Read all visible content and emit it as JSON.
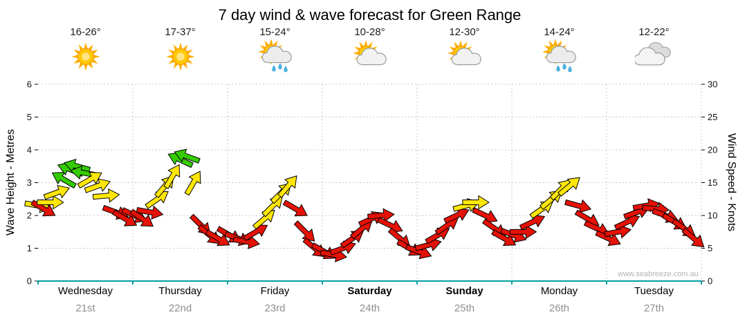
{
  "title": "7 day wind & wave forecast for Green Range",
  "watermark": "www.seabreeze.com.au",
  "colors": {
    "x_axis": "#00a0a0",
    "grid": "#c8c8c8",
    "date_text": "#8f8f8f",
    "watermark": "#b4b4b4"
  },
  "days": [
    {
      "name": "Wednesday",
      "date": "21st",
      "temp": "16-26°",
      "icon": "sunny",
      "bold": false
    },
    {
      "name": "Thursday",
      "date": "22nd",
      "temp": "17-37°",
      "icon": "sunny",
      "bold": false
    },
    {
      "name": "Friday",
      "date": "23rd",
      "temp": "15-24°",
      "icon": "sun-rain",
      "bold": false
    },
    {
      "name": "Saturday",
      "date": "24th",
      "temp": "10-28°",
      "icon": "sun-cloud",
      "bold": true
    },
    {
      "name": "Sunday",
      "date": "25th",
      "temp": "12-30°",
      "icon": "sun-cloud",
      "bold": true
    },
    {
      "name": "Monday",
      "date": "26th",
      "temp": "14-24°",
      "icon": "sun-rain",
      "bold": false
    },
    {
      "name": "Tuesday",
      "date": "27th",
      "temp": "12-22°",
      "icon": "cloudy",
      "bold": false
    }
  ],
  "chart_data": {
    "type": "scatter",
    "style": "wind-direction-arrows",
    "title": "7 day wind & wave forecast for Green Range",
    "x_categories": [
      "Wednesday 21st",
      "Thursday 22nd",
      "Friday 23rd",
      "Saturday 24th",
      "Sunday 25th",
      "Monday 26th",
      "Tuesday 27th"
    ],
    "left_axis": {
      "label": "Wave Height - Metres",
      "range": [
        0,
        6
      ],
      "ticks": [
        0,
        1,
        2,
        3,
        4,
        5,
        6
      ]
    },
    "right_axis": {
      "label": "Wind Speed - Knots",
      "range": [
        0,
        30
      ],
      "ticks": [
        0,
        5,
        10,
        15,
        20,
        25,
        30
      ]
    },
    "grid": true,
    "arrow_colors": {
      "r": "#e41207",
      "y": "#ffe608",
      "g": "#35cc02"
    },
    "point_fields": {
      "d": "day index",
      "h": "fraction of day",
      "k": "wind speed knots",
      "a": "arrow angle deg (0=right, negative=up)",
      "c": "color key"
    },
    "points": [
      {
        "d": 0,
        "h": 0.0,
        "k": 11.5,
        "a": 10,
        "c": "y"
      },
      {
        "d": 0,
        "h": 0.06,
        "k": 11.0,
        "a": 30,
        "c": "r"
      },
      {
        "d": 0,
        "h": 0.13,
        "k": 12.0,
        "a": 0,
        "c": "y"
      },
      {
        "d": 0,
        "h": 0.2,
        "k": 13.5,
        "a": -20,
        "c": "y"
      },
      {
        "d": 0,
        "h": 0.27,
        "k": 15.5,
        "a": -150,
        "c": "g"
      },
      {
        "d": 0,
        "h": 0.34,
        "k": 17.0,
        "a": -160,
        "c": "g"
      },
      {
        "d": 0,
        "h": 0.41,
        "k": 17.5,
        "a": -165,
        "c": "g"
      },
      {
        "d": 0,
        "h": 0.48,
        "k": 16.5,
        "a": -170,
        "c": "g"
      },
      {
        "d": 0,
        "h": 0.55,
        "k": 15.5,
        "a": -30,
        "c": "y"
      },
      {
        "d": 0,
        "h": 0.63,
        "k": 14.5,
        "a": -20,
        "c": "y"
      },
      {
        "d": 0,
        "h": 0.72,
        "k": 13.0,
        "a": -5,
        "c": "y"
      },
      {
        "d": 0,
        "h": 0.82,
        "k": 10.5,
        "a": 20,
        "c": "r"
      },
      {
        "d": 0,
        "h": 0.92,
        "k": 9.5,
        "a": 30,
        "c": "r"
      },
      {
        "d": 1,
        "h": 0.02,
        "k": 10.0,
        "a": 25,
        "c": "r"
      },
      {
        "d": 1,
        "h": 0.1,
        "k": 9.5,
        "a": 35,
        "c": "r"
      },
      {
        "d": 1,
        "h": 0.18,
        "k": 10.5,
        "a": 10,
        "c": "r"
      },
      {
        "d": 1,
        "h": 0.26,
        "k": 12.5,
        "a": -35,
        "c": "y"
      },
      {
        "d": 1,
        "h": 0.34,
        "k": 14.5,
        "a": -50,
        "c": "y"
      },
      {
        "d": 1,
        "h": 0.42,
        "k": 16.0,
        "a": -60,
        "c": "y"
      },
      {
        "d": 1,
        "h": 0.5,
        "k": 18.5,
        "a": -155,
        "c": "g"
      },
      {
        "d": 1,
        "h": 0.57,
        "k": 19.0,
        "a": -160,
        "c": "g"
      },
      {
        "d": 1,
        "h": 0.64,
        "k": 15.0,
        "a": -60,
        "c": "y"
      },
      {
        "d": 1,
        "h": 0.72,
        "k": 8.5,
        "a": 45,
        "c": "r"
      },
      {
        "d": 1,
        "h": 0.81,
        "k": 7.0,
        "a": 40,
        "c": "r"
      },
      {
        "d": 1,
        "h": 0.9,
        "k": 6.5,
        "a": 30,
        "c": "r"
      },
      {
        "d": 2,
        "h": 0.02,
        "k": 7.0,
        "a": 30,
        "c": "r"
      },
      {
        "d": 2,
        "h": 0.11,
        "k": 6.5,
        "a": 20,
        "c": "r"
      },
      {
        "d": 2,
        "h": 0.2,
        "k": 6.0,
        "a": 10,
        "c": "r"
      },
      {
        "d": 2,
        "h": 0.3,
        "k": 7.5,
        "a": -30,
        "c": "r"
      },
      {
        "d": 2,
        "h": 0.39,
        "k": 9.5,
        "a": -40,
        "c": "y"
      },
      {
        "d": 2,
        "h": 0.48,
        "k": 11.5,
        "a": -45,
        "c": "y"
      },
      {
        "d": 2,
        "h": 0.57,
        "k": 13.5,
        "a": -45,
        "c": "y"
      },
      {
        "d": 2,
        "h": 0.64,
        "k": 14.5,
        "a": -50,
        "c": "y"
      },
      {
        "d": 2,
        "h": 0.72,
        "k": 11.0,
        "a": 30,
        "c": "r"
      },
      {
        "d": 2,
        "h": 0.82,
        "k": 7.5,
        "a": 45,
        "c": "r"
      },
      {
        "d": 2,
        "h": 0.92,
        "k": 5.0,
        "a": 40,
        "c": "r"
      },
      {
        "d": 3,
        "h": 0.02,
        "k": 4.5,
        "a": 30,
        "c": "r"
      },
      {
        "d": 3,
        "h": 0.12,
        "k": 4.0,
        "a": 10,
        "c": "r"
      },
      {
        "d": 3,
        "h": 0.22,
        "k": 5.0,
        "a": -20,
        "c": "r"
      },
      {
        "d": 3,
        "h": 0.32,
        "k": 6.5,
        "a": -35,
        "c": "r"
      },
      {
        "d": 3,
        "h": 0.42,
        "k": 8.0,
        "a": -40,
        "c": "r"
      },
      {
        "d": 3,
        "h": 0.52,
        "k": 9.5,
        "a": -25,
        "c": "r"
      },
      {
        "d": 3,
        "h": 0.62,
        "k": 10.0,
        "a": -5,
        "c": "r"
      },
      {
        "d": 3,
        "h": 0.72,
        "k": 8.5,
        "a": 25,
        "c": "r"
      },
      {
        "d": 3,
        "h": 0.82,
        "k": 6.5,
        "a": 40,
        "c": "r"
      },
      {
        "d": 3,
        "h": 0.92,
        "k": 5.0,
        "a": 30,
        "c": "r"
      },
      {
        "d": 4,
        "h": 0.02,
        "k": 4.5,
        "a": 20,
        "c": "r"
      },
      {
        "d": 4,
        "h": 0.12,
        "k": 5.5,
        "a": -15,
        "c": "r"
      },
      {
        "d": 4,
        "h": 0.22,
        "k": 7.0,
        "a": -30,
        "c": "r"
      },
      {
        "d": 4,
        "h": 0.32,
        "k": 8.5,
        "a": -35,
        "c": "r"
      },
      {
        "d": 4,
        "h": 0.42,
        "k": 10.0,
        "a": -25,
        "c": "r"
      },
      {
        "d": 4,
        "h": 0.52,
        "k": 11.5,
        "a": -15,
        "c": "y"
      },
      {
        "d": 4,
        "h": 0.62,
        "k": 12.0,
        "a": 0,
        "c": "y"
      },
      {
        "d": 4,
        "h": 0.72,
        "k": 10.0,
        "a": 25,
        "c": "r"
      },
      {
        "d": 4,
        "h": 0.82,
        "k": 8.0,
        "a": 35,
        "c": "r"
      },
      {
        "d": 4,
        "h": 0.92,
        "k": 6.5,
        "a": 30,
        "c": "r"
      },
      {
        "d": 5,
        "h": 0.02,
        "k": 7.0,
        "a": 20,
        "c": "r"
      },
      {
        "d": 5,
        "h": 0.12,
        "k": 7.5,
        "a": 0,
        "c": "r"
      },
      {
        "d": 5,
        "h": 0.22,
        "k": 9.0,
        "a": -25,
        "c": "r"
      },
      {
        "d": 5,
        "h": 0.32,
        "k": 11.0,
        "a": -35,
        "c": "y"
      },
      {
        "d": 5,
        "h": 0.42,
        "k": 12.5,
        "a": -40,
        "c": "y"
      },
      {
        "d": 5,
        "h": 0.52,
        "k": 14.0,
        "a": -45,
        "c": "y"
      },
      {
        "d": 5,
        "h": 0.61,
        "k": 14.5,
        "a": -40,
        "c": "y"
      },
      {
        "d": 5,
        "h": 0.7,
        "k": 11.5,
        "a": 15,
        "c": "r"
      },
      {
        "d": 5,
        "h": 0.8,
        "k": 9.5,
        "a": 30,
        "c": "r"
      },
      {
        "d": 5,
        "h": 0.9,
        "k": 8.0,
        "a": 25,
        "c": "r"
      },
      {
        "d": 6,
        "h": 0.02,
        "k": 6.5,
        "a": 25,
        "c": "r"
      },
      {
        "d": 6,
        "h": 0.12,
        "k": 7.5,
        "a": -10,
        "c": "r"
      },
      {
        "d": 6,
        "h": 0.22,
        "k": 9.0,
        "a": -25,
        "c": "r"
      },
      {
        "d": 6,
        "h": 0.32,
        "k": 10.5,
        "a": -20,
        "c": "r"
      },
      {
        "d": 6,
        "h": 0.42,
        "k": 11.5,
        "a": -10,
        "c": "r"
      },
      {
        "d": 6,
        "h": 0.52,
        "k": 11.0,
        "a": 5,
        "c": "r"
      },
      {
        "d": 6,
        "h": 0.62,
        "k": 10.0,
        "a": 20,
        "c": "r"
      },
      {
        "d": 6,
        "h": 0.72,
        "k": 9.0,
        "a": 30,
        "c": "r"
      },
      {
        "d": 6,
        "h": 0.82,
        "k": 8.0,
        "a": 35,
        "c": "r"
      },
      {
        "d": 6,
        "h": 0.92,
        "k": 6.5,
        "a": 40,
        "c": "r"
      }
    ]
  }
}
